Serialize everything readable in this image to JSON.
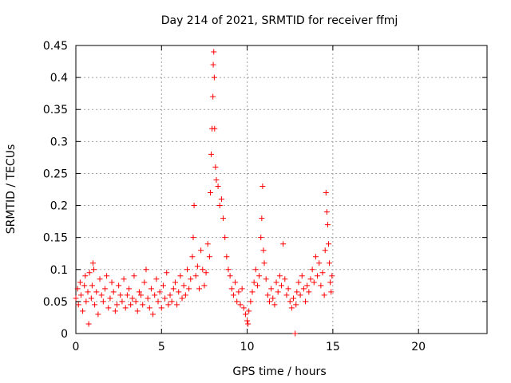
{
  "chart_data": {
    "type": "scatter",
    "title": "Day 214 of 2021, SRMTID for receiver ffmj",
    "xlabel": "GPS time / hours",
    "ylabel": "SRMTID / TECUs",
    "xlim": [
      0,
      24
    ],
    "ylim": [
      0,
      0.45
    ],
    "xticks": [
      "0",
      "5",
      "10",
      "15",
      "20"
    ],
    "yticks": [
      "0",
      "0.05",
      "0.1",
      "0.15",
      "0.2",
      "0.25",
      "0.3",
      "0.35",
      "0.4",
      "0.45"
    ],
    "grid": true,
    "marker": "plus",
    "series_color": "#ff0000",
    "series": [
      {
        "name": "SRMTID",
        "points": [
          [
            0.0,
            0.055
          ],
          [
            0.1,
            0.07
          ],
          [
            0.15,
            0.045
          ],
          [
            0.25,
            0.08
          ],
          [
            0.3,
            0.06
          ],
          [
            0.4,
            0.035
          ],
          [
            0.5,
            0.075
          ],
          [
            0.55,
            0.09
          ],
          [
            0.6,
            0.05
          ],
          [
            0.7,
            0.065
          ],
          [
            0.75,
            0.015
          ],
          [
            0.8,
            0.095
          ],
          [
            0.9,
            0.055
          ],
          [
            0.95,
            0.075
          ],
          [
            1.0,
            0.11
          ],
          [
            1.05,
            0.1
          ],
          [
            1.1,
            0.045
          ],
          [
            1.2,
            0.065
          ],
          [
            1.3,
            0.03
          ],
          [
            1.4,
            0.085
          ],
          [
            1.5,
            0.06
          ],
          [
            1.6,
            0.05
          ],
          [
            1.7,
            0.07
          ],
          [
            1.8,
            0.09
          ],
          [
            1.9,
            0.04
          ],
          [
            2.0,
            0.055
          ],
          [
            2.1,
            0.08
          ],
          [
            2.2,
            0.065
          ],
          [
            2.3,
            0.035
          ],
          [
            2.4,
            0.045
          ],
          [
            2.5,
            0.075
          ],
          [
            2.6,
            0.06
          ],
          [
            2.7,
            0.05
          ],
          [
            2.8,
            0.085
          ],
          [
            2.9,
            0.04
          ],
          [
            3.0,
            0.06
          ],
          [
            3.1,
            0.07
          ],
          [
            3.2,
            0.045
          ],
          [
            3.3,
            0.055
          ],
          [
            3.4,
            0.09
          ],
          [
            3.5,
            0.05
          ],
          [
            3.6,
            0.035
          ],
          [
            3.7,
            0.065
          ],
          [
            3.8,
            0.06
          ],
          [
            3.9,
            0.045
          ],
          [
            4.0,
            0.08
          ],
          [
            4.1,
            0.1
          ],
          [
            4.2,
            0.055
          ],
          [
            4.3,
            0.04
          ],
          [
            4.4,
            0.07
          ],
          [
            4.5,
            0.03
          ],
          [
            4.6,
            0.06
          ],
          [
            4.7,
            0.085
          ],
          [
            4.8,
            0.05
          ],
          [
            4.9,
            0.065
          ],
          [
            5.0,
            0.04
          ],
          [
            5.1,
            0.075
          ],
          [
            5.2,
            0.055
          ],
          [
            5.3,
            0.095
          ],
          [
            5.4,
            0.045
          ],
          [
            5.5,
            0.06
          ],
          [
            5.6,
            0.05
          ],
          [
            5.7,
            0.07
          ],
          [
            5.8,
            0.08
          ],
          [
            5.9,
            0.045
          ],
          [
            6.0,
            0.065
          ],
          [
            6.1,
            0.09
          ],
          [
            6.2,
            0.055
          ],
          [
            6.3,
            0.075
          ],
          [
            6.4,
            0.06
          ],
          [
            6.5,
            0.1
          ],
          [
            6.6,
            0.07
          ],
          [
            6.7,
            0.085
          ],
          [
            6.8,
            0.12
          ],
          [
            6.85,
            0.15
          ],
          [
            6.9,
            0.2
          ],
          [
            7.0,
            0.09
          ],
          [
            7.1,
            0.105
          ],
          [
            7.2,
            0.07
          ],
          [
            7.3,
            0.13
          ],
          [
            7.4,
            0.1
          ],
          [
            7.5,
            0.075
          ],
          [
            7.6,
            0.095
          ],
          [
            7.7,
            0.14
          ],
          [
            7.8,
            0.12
          ],
          [
            7.85,
            0.22
          ],
          [
            7.9,
            0.28
          ],
          [
            7.95,
            0.32
          ],
          [
            8.0,
            0.37
          ],
          [
            8.02,
            0.42
          ],
          [
            8.05,
            0.44
          ],
          [
            8.08,
            0.4
          ],
          [
            8.1,
            0.32
          ],
          [
            8.15,
            0.26
          ],
          [
            8.2,
            0.24
          ],
          [
            8.3,
            0.23
          ],
          [
            8.4,
            0.2
          ],
          [
            8.5,
            0.21
          ],
          [
            8.6,
            0.18
          ],
          [
            8.7,
            0.15
          ],
          [
            8.8,
            0.12
          ],
          [
            8.9,
            0.1
          ],
          [
            9.0,
            0.09
          ],
          [
            9.1,
            0.07
          ],
          [
            9.2,
            0.06
          ],
          [
            9.3,
            0.08
          ],
          [
            9.4,
            0.05
          ],
          [
            9.5,
            0.065
          ],
          [
            9.6,
            0.045
          ],
          [
            9.7,
            0.07
          ],
          [
            9.8,
            0.04
          ],
          [
            9.9,
            0.03
          ],
          [
            10.0,
            0.02
          ],
          [
            10.05,
            0.015
          ],
          [
            10.1,
            0.035
          ],
          [
            10.2,
            0.05
          ],
          [
            10.3,
            0.065
          ],
          [
            10.4,
            0.08
          ],
          [
            10.5,
            0.1
          ],
          [
            10.6,
            0.075
          ],
          [
            10.7,
            0.09
          ],
          [
            10.8,
            0.15
          ],
          [
            10.85,
            0.18
          ],
          [
            10.9,
            0.23
          ],
          [
            10.95,
            0.13
          ],
          [
            11.0,
            0.11
          ],
          [
            11.1,
            0.085
          ],
          [
            11.2,
            0.06
          ],
          [
            11.3,
            0.05
          ],
          [
            11.4,
            0.07
          ],
          [
            11.5,
            0.055
          ],
          [
            11.6,
            0.045
          ],
          [
            11.7,
            0.08
          ],
          [
            11.8,
            0.065
          ],
          [
            11.9,
            0.09
          ],
          [
            12.0,
            0.075
          ],
          [
            12.1,
            0.14
          ],
          [
            12.2,
            0.085
          ],
          [
            12.3,
            0.06
          ],
          [
            12.4,
            0.07
          ],
          [
            12.5,
            0.05
          ],
          [
            12.6,
            0.04
          ],
          [
            12.7,
            0.055
          ],
          [
            12.8,
            0.0
          ],
          [
            12.85,
            0.045
          ],
          [
            12.9,
            0.065
          ],
          [
            13.0,
            0.08
          ],
          [
            13.1,
            0.06
          ],
          [
            13.2,
            0.09
          ],
          [
            13.3,
            0.07
          ],
          [
            13.4,
            0.05
          ],
          [
            13.5,
            0.075
          ],
          [
            13.6,
            0.065
          ],
          [
            13.7,
            0.085
          ],
          [
            13.8,
            0.1
          ],
          [
            13.9,
            0.08
          ],
          [
            14.0,
            0.12
          ],
          [
            14.1,
            0.09
          ],
          [
            14.2,
            0.11
          ],
          [
            14.3,
            0.075
          ],
          [
            14.4,
            0.095
          ],
          [
            14.5,
            0.06
          ],
          [
            14.55,
            0.13
          ],
          [
            14.6,
            0.22
          ],
          [
            14.65,
            0.19
          ],
          [
            14.7,
            0.17
          ],
          [
            14.75,
            0.14
          ],
          [
            14.8,
            0.11
          ],
          [
            14.85,
            0.08
          ],
          [
            14.9,
            0.065
          ],
          [
            14.95,
            0.09
          ]
        ]
      }
    ]
  }
}
